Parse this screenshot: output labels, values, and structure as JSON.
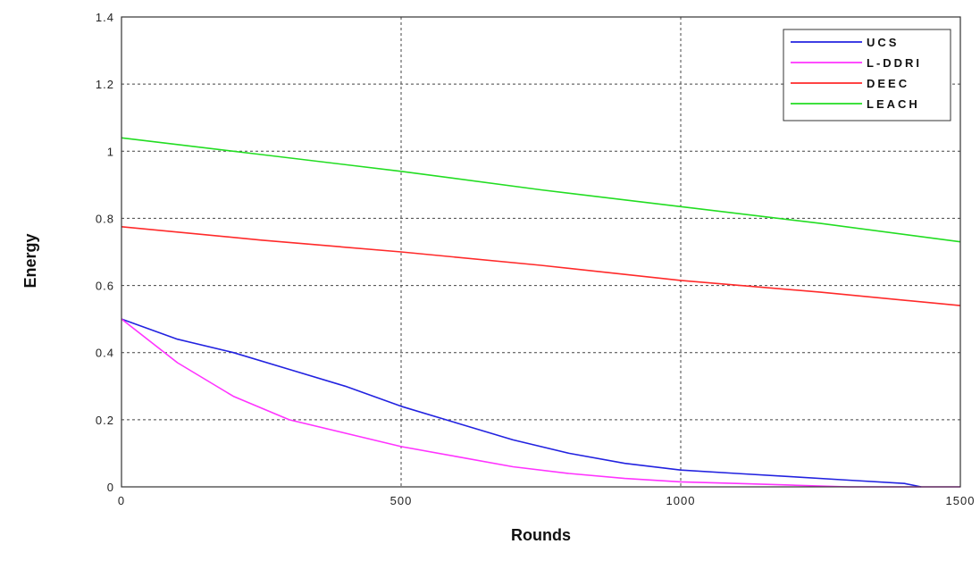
{
  "chart_data": {
    "type": "line",
    "title": "",
    "xlabel": "Rounds",
    "ylabel": "Energy",
    "xlim": [
      0,
      1500
    ],
    "ylim": [
      0,
      1.4
    ],
    "xticks": [
      0,
      500,
      1000,
      1500
    ],
    "yticks": [
      0,
      0.2,
      0.4,
      0.6,
      0.8,
      1,
      1.2,
      1.4
    ],
    "xtick_labels": [
      "0",
      "500",
      "1000",
      "1500"
    ],
    "ytick_labels": [
      "0",
      "0.2",
      "0.4",
      "0.6",
      "0.8",
      "1",
      "1.2",
      "1.4"
    ],
    "grid": true,
    "legend_position": "top-right",
    "series": [
      {
        "name": "UCS",
        "color": "#2222e0",
        "x": [
          0,
          100,
          200,
          300,
          400,
          500,
          600,
          700,
          800,
          900,
          1000,
          1100,
          1200,
          1300,
          1400,
          1430
        ],
        "y": [
          0.5,
          0.44,
          0.4,
          0.35,
          0.3,
          0.24,
          0.19,
          0.14,
          0.1,
          0.07,
          0.05,
          0.04,
          0.03,
          0.02,
          0.01,
          0.0
        ]
      },
      {
        "name": "L-DDRI",
        "color": "#ff33ff",
        "x": [
          0,
          100,
          200,
          300,
          400,
          500,
          600,
          700,
          800,
          900,
          1000,
          1100,
          1200,
          1300,
          1400,
          1500
        ],
        "y": [
          0.5,
          0.37,
          0.27,
          0.2,
          0.16,
          0.12,
          0.09,
          0.06,
          0.04,
          0.025,
          0.015,
          0.01,
          0.005,
          0.0,
          0.0,
          0.0
        ]
      },
      {
        "name": "DEEC",
        "color": "#ff2a2a",
        "x": [
          0,
          250,
          500,
          750,
          1000,
          1250,
          1500
        ],
        "y": [
          0.775,
          0.735,
          0.7,
          0.66,
          0.615,
          0.58,
          0.54
        ]
      },
      {
        "name": "LEACH",
        "color": "#22dd22",
        "x": [
          0,
          250,
          500,
          750,
          1000,
          1250,
          1500
        ],
        "y": [
          1.04,
          0.99,
          0.94,
          0.885,
          0.835,
          0.785,
          0.73
        ]
      }
    ]
  }
}
